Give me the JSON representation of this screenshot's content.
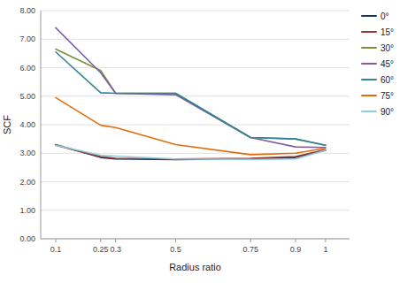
{
  "chart_data": {
    "type": "line",
    "xlabel": "Radius ratio",
    "ylabel": "SCF",
    "x": [
      0.1,
      0.25,
      0.3,
      0.5,
      0.75,
      0.9,
      1.0
    ],
    "series": [
      {
        "name": "0°",
        "color": "#17375e",
        "values": [
          3.3,
          2.85,
          2.8,
          2.78,
          2.8,
          2.85,
          3.1
        ]
      },
      {
        "name": "15°",
        "color": "#953735",
        "values": [
          3.28,
          2.88,
          2.82,
          2.8,
          2.82,
          2.88,
          3.12
        ]
      },
      {
        "name": "30°",
        "color": "#76923c",
        "values": [
          6.65,
          5.9,
          5.1,
          5.1,
          3.55,
          3.5,
          3.28
        ]
      },
      {
        "name": "45°",
        "color": "#7f5fa0",
        "values": [
          7.4,
          5.82,
          5.1,
          5.05,
          3.55,
          3.22,
          3.2
        ]
      },
      {
        "name": "60°",
        "color": "#31849b",
        "values": [
          6.55,
          5.12,
          5.1,
          5.1,
          3.55,
          3.5,
          3.28
        ]
      },
      {
        "name": "75°",
        "color": "#e36c09",
        "values": [
          4.95,
          3.98,
          3.9,
          3.3,
          2.95,
          3.0,
          3.18
        ]
      },
      {
        "name": "90°",
        "color": "#92cddc",
        "values": [
          3.28,
          2.93,
          2.9,
          2.8,
          2.78,
          2.8,
          3.1
        ]
      }
    ],
    "xlim": [
      0.05,
      1.08
    ],
    "xticks": [
      0.1,
      0.25,
      0.3,
      0.5,
      0.75,
      0.9,
      1
    ],
    "ylim": [
      0.0,
      8.0
    ],
    "yticks": [
      {
        "value": 0,
        "label": "0.00"
      },
      {
        "value": 1,
        "label": "1.00"
      },
      {
        "value": 2,
        "label": "2.00"
      },
      {
        "value": 3,
        "label": "3.00"
      },
      {
        "value": 4,
        "label": "4.00"
      },
      {
        "value": 5,
        "label": "5.00"
      },
      {
        "value": 6,
        "label": "6.00"
      },
      {
        "value": 7,
        "label": "7.00"
      },
      {
        "value": 8,
        "label": "8.00"
      }
    ],
    "grid": true,
    "legend": "right"
  }
}
